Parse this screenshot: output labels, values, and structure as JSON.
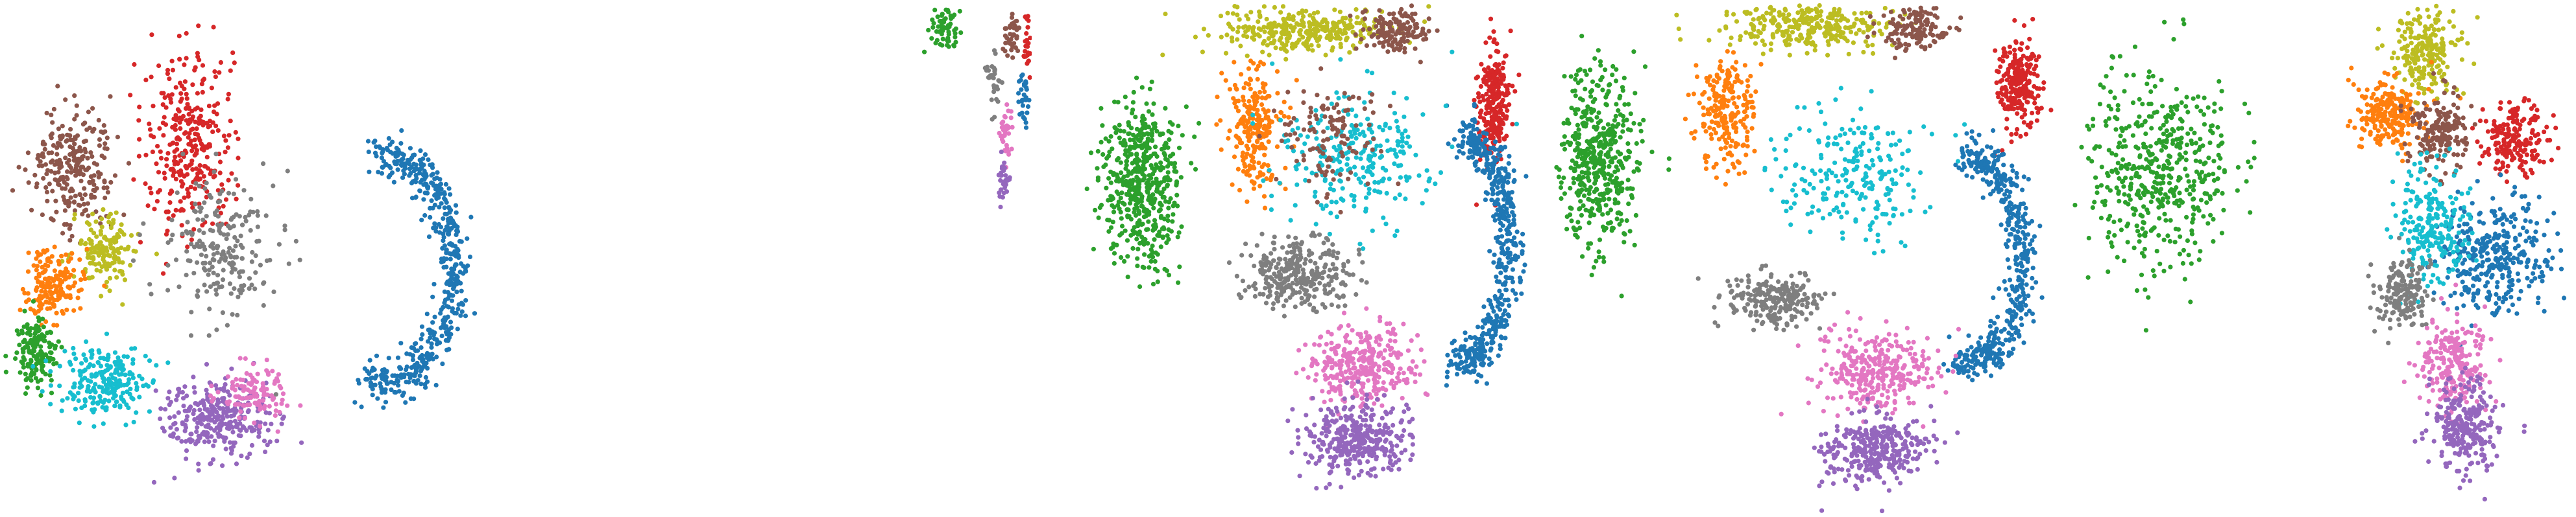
{
  "palette": {
    "blue": "#1f77b4",
    "orange": "#ff7f0e",
    "green": "#2ca02c",
    "red": "#d62728",
    "brown": "#8c564b",
    "pink": "#e377c2",
    "gray": "#7f7f7f",
    "olive": "#bcbd22",
    "cyan": "#17becf",
    "purple": "#9467bd"
  },
  "chart_data": [
    {
      "type": "scatter",
      "panel": "panel-1",
      "title": "",
      "xlabel": "",
      "ylabel": "",
      "axes_visible": false,
      "grid": false,
      "legend": "none",
      "point_count_estimate": 3000,
      "clusters": [
        {
          "color": "blue",
          "center": [
            0.72,
            0.52
          ],
          "spread": [
            0.16,
            0.22
          ],
          "n": 520,
          "shape": "arc"
        },
        {
          "color": "red",
          "center": [
            0.36,
            0.28
          ],
          "spread": [
            0.08,
            0.16
          ],
          "n": 320
        },
        {
          "color": "brown",
          "center": [
            0.14,
            0.32
          ],
          "spread": [
            0.07,
            0.1
          ],
          "n": 260
        },
        {
          "color": "olive",
          "center": [
            0.2,
            0.48
          ],
          "spread": [
            0.05,
            0.06
          ],
          "n": 150
        },
        {
          "color": "orange",
          "center": [
            0.1,
            0.55
          ],
          "spread": [
            0.05,
            0.06
          ],
          "n": 170
        },
        {
          "color": "green",
          "center": [
            0.07,
            0.68
          ],
          "spread": [
            0.035,
            0.06
          ],
          "n": 150
        },
        {
          "color": "cyan",
          "center": [
            0.2,
            0.74
          ],
          "spread": [
            0.08,
            0.06
          ],
          "n": 230
        },
        {
          "color": "purple",
          "center": [
            0.41,
            0.81
          ],
          "spread": [
            0.09,
            0.07
          ],
          "n": 300
        },
        {
          "color": "pink",
          "center": [
            0.48,
            0.76
          ],
          "spread": [
            0.06,
            0.05
          ],
          "n": 110
        },
        {
          "color": "gray",
          "center": [
            0.42,
            0.48
          ],
          "spread": [
            0.1,
            0.12
          ],
          "n": 220
        }
      ]
    },
    {
      "type": "scatter",
      "panel": "panel-2",
      "title": "",
      "xlabel": "",
      "ylabel": "",
      "axes_visible": false,
      "grid": false,
      "legend": "none",
      "point_count_estimate": 260,
      "clusters": [
        {
          "color": "green",
          "center": [
            0.2,
            0.05
          ],
          "spread": [
            0.15,
            0.04
          ],
          "n": 60
        },
        {
          "color": "brown",
          "center": [
            0.82,
            0.07
          ],
          "spread": [
            0.06,
            0.04
          ],
          "n": 40
        },
        {
          "color": "gray",
          "center": [
            0.65,
            0.16
          ],
          "spread": [
            0.06,
            0.05
          ],
          "n": 30
        },
        {
          "color": "red",
          "center": [
            0.95,
            0.09
          ],
          "spread": [
            0.03,
            0.05
          ],
          "n": 25
        },
        {
          "color": "blue",
          "center": [
            0.93,
            0.19
          ],
          "spread": [
            0.04,
            0.05
          ],
          "n": 30
        },
        {
          "color": "pink",
          "center": [
            0.77,
            0.26
          ],
          "spread": [
            0.05,
            0.06
          ],
          "n": 35
        },
        {
          "color": "purple",
          "center": [
            0.75,
            0.35
          ],
          "spread": [
            0.05,
            0.04
          ],
          "n": 30
        }
      ]
    },
    {
      "type": "scatter",
      "panel": "panel-3",
      "title": "",
      "xlabel": "",
      "ylabel": "",
      "axes_visible": false,
      "grid": false,
      "legend": "none",
      "point_count_estimate": 4200,
      "clusters": [
        {
          "color": "green",
          "center": [
            0.16,
            0.35
          ],
          "spread": [
            0.07,
            0.15
          ],
          "n": 520
        },
        {
          "color": "olive",
          "center": [
            0.5,
            0.06
          ],
          "spread": [
            0.16,
            0.04
          ],
          "n": 320
        },
        {
          "color": "brown",
          "center": [
            0.68,
            0.06
          ],
          "spread": [
            0.06,
            0.04
          ],
          "n": 140
        },
        {
          "color": "red",
          "center": [
            0.88,
            0.2
          ],
          "spread": [
            0.03,
            0.1
          ],
          "n": 260
        },
        {
          "color": "blue",
          "center": [
            0.82,
            0.48
          ],
          "spread": [
            0.1,
            0.22
          ],
          "n": 520,
          "shape": "arc"
        },
        {
          "color": "orange",
          "center": [
            0.39,
            0.25
          ],
          "spread": [
            0.05,
            0.1
          ],
          "n": 230
        },
        {
          "color": "cyan",
          "center": [
            0.6,
            0.3
          ],
          "spread": [
            0.14,
            0.12
          ],
          "n": 260
        },
        {
          "color": "gray",
          "center": [
            0.48,
            0.53
          ],
          "spread": [
            0.1,
            0.06
          ],
          "n": 300
        },
        {
          "color": "pink",
          "center": [
            0.61,
            0.71
          ],
          "spread": [
            0.1,
            0.07
          ],
          "n": 330
        },
        {
          "color": "purple",
          "center": [
            0.6,
            0.85
          ],
          "spread": [
            0.1,
            0.06
          ],
          "n": 360
        },
        {
          "color": "brown",
          "center": [
            0.55,
            0.26
          ],
          "spread": [
            0.1,
            0.1
          ],
          "n": 120
        }
      ]
    },
    {
      "type": "scatter",
      "panel": "panel-4",
      "title": "",
      "xlabel": "",
      "ylabel": "",
      "axes_visible": false,
      "grid": false,
      "legend": "none",
      "point_count_estimate": 3700,
      "clusters": [
        {
          "color": "green",
          "center": [
            0.09,
            0.3
          ],
          "spread": [
            0.07,
            0.15
          ],
          "n": 480
        },
        {
          "color": "olive",
          "center": [
            0.5,
            0.05
          ],
          "spread": [
            0.15,
            0.04
          ],
          "n": 300
        },
        {
          "color": "brown",
          "center": [
            0.7,
            0.06
          ],
          "spread": [
            0.06,
            0.04
          ],
          "n": 130
        },
        {
          "color": "red",
          "center": [
            0.9,
            0.16
          ],
          "spread": [
            0.035,
            0.08
          ],
          "n": 240
        },
        {
          "color": "blue",
          "center": [
            0.8,
            0.5
          ],
          "spread": [
            0.12,
            0.2
          ],
          "n": 480,
          "shape": "arc"
        },
        {
          "color": "orange",
          "center": [
            0.34,
            0.22
          ],
          "spread": [
            0.05,
            0.1
          ],
          "n": 220
        },
        {
          "color": "cyan",
          "center": [
            0.58,
            0.33
          ],
          "spread": [
            0.13,
            0.12
          ],
          "n": 230
        },
        {
          "color": "gray",
          "center": [
            0.43,
            0.58
          ],
          "spread": [
            0.08,
            0.05
          ],
          "n": 220
        },
        {
          "color": "pink",
          "center": [
            0.63,
            0.72
          ],
          "spread": [
            0.1,
            0.07
          ],
          "n": 310
        },
        {
          "color": "purple",
          "center": [
            0.62,
            0.87
          ],
          "spread": [
            0.09,
            0.06
          ],
          "n": 330
        }
      ]
    },
    {
      "type": "scatter",
      "panel": "panel-5",
      "title": "",
      "xlabel": "",
      "ylabel": "",
      "axes_visible": false,
      "grid": false,
      "legend": "none",
      "point_count_estimate": 2900,
      "clusters": [
        {
          "color": "green",
          "center": [
            0.18,
            0.33
          ],
          "spread": [
            0.13,
            0.17
          ],
          "n": 480
        },
        {
          "color": "olive",
          "center": [
            0.7,
            0.1
          ],
          "spread": [
            0.06,
            0.07
          ],
          "n": 220
        },
        {
          "color": "orange",
          "center": [
            0.63,
            0.22
          ],
          "spread": [
            0.06,
            0.06
          ],
          "n": 230
        },
        {
          "color": "brown",
          "center": [
            0.73,
            0.25
          ],
          "spread": [
            0.05,
            0.07
          ],
          "n": 180
        },
        {
          "color": "red",
          "center": [
            0.88,
            0.27
          ],
          "spread": [
            0.06,
            0.06
          ],
          "n": 190
        },
        {
          "color": "blue",
          "center": [
            0.84,
            0.5
          ],
          "spread": [
            0.1,
            0.1
          ],
          "n": 330
        },
        {
          "color": "cyan",
          "center": [
            0.71,
            0.43
          ],
          "spread": [
            0.07,
            0.1
          ],
          "n": 230
        },
        {
          "color": "gray",
          "center": [
            0.66,
            0.57
          ],
          "spread": [
            0.05,
            0.06
          ],
          "n": 170
        },
        {
          "color": "pink",
          "center": [
            0.76,
            0.7
          ],
          "spread": [
            0.06,
            0.08
          ],
          "n": 220
        },
        {
          "color": "purple",
          "center": [
            0.78,
            0.82
          ],
          "spread": [
            0.06,
            0.08
          ],
          "n": 260
        }
      ]
    }
  ]
}
